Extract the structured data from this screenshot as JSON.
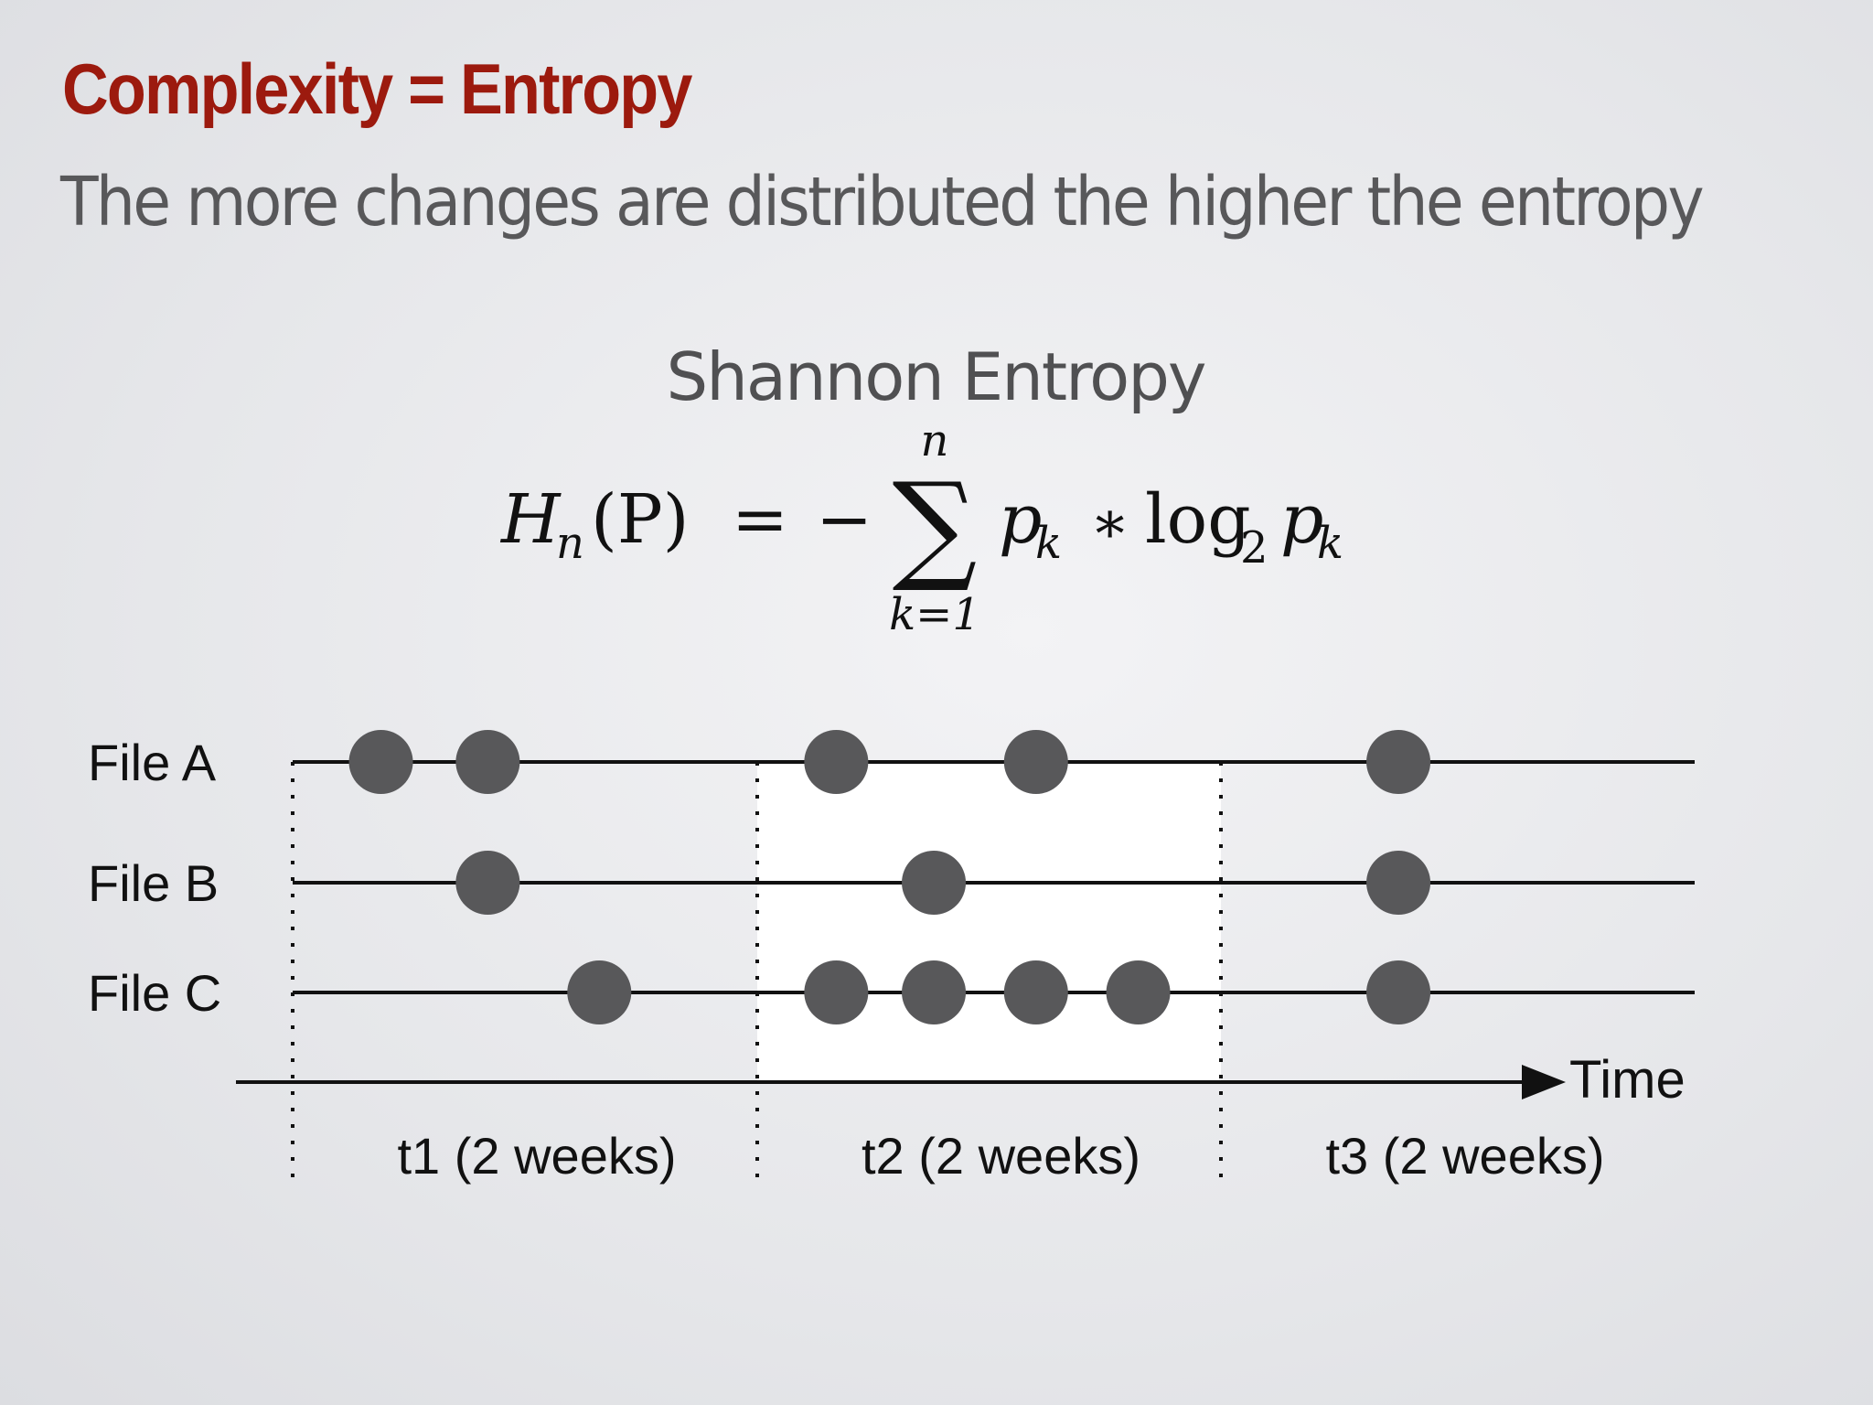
{
  "slide": {
    "title": "Complexity = Entropy",
    "subtitle": "The more changes are distributed the higher the entropy",
    "formula_name": "Shannon Entropy"
  },
  "formula": {
    "lhs": "H",
    "lhs_sub": "n",
    "lhs_arg": "(P)",
    "equals": "=",
    "minus": "−",
    "sum_symbol": "∑",
    "sum_upper": "n",
    "sum_lower": "k=1",
    "term_p": "p",
    "term_p_sub": "k",
    "times": "∗",
    "log": "log",
    "log_base": "2",
    "term_p2": "p",
    "term_p2_sub": "k"
  },
  "timeline": {
    "axis_label": "Time",
    "files": [
      "File A",
      "File B",
      "File C"
    ],
    "periods": [
      "t1 (2 weeks)",
      "t2 (2 weeks)",
      "t3 (2 weeks)"
    ],
    "highlighted_period": 1,
    "changes": {
      "File A": [
        0.19,
        0.42,
        1.17,
        1.6,
        2.38
      ],
      "File B": [
        0.42,
        1.38,
        2.38
      ],
      "File C": [
        0.66,
        1.17,
        1.38,
        1.6,
        1.82,
        2.38
      ]
    },
    "colors": {
      "marker": "#58585a",
      "line": "#111111",
      "highlight": "#ffffff"
    }
  }
}
